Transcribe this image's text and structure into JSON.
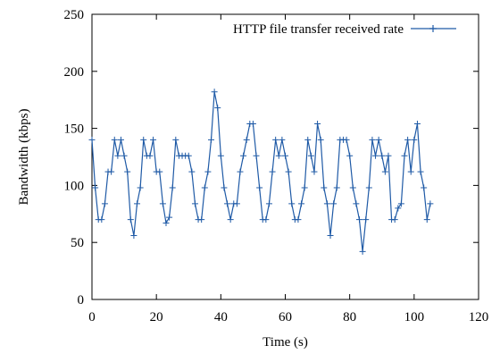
{
  "chart_data": {
    "type": "line",
    "xlabel": "Time (s)",
    "ylabel": "Bandwidth (kbps)",
    "xlim": [
      0,
      120
    ],
    "ylim": [
      0,
      250
    ],
    "xticks": [
      0,
      20,
      40,
      60,
      80,
      100,
      120
    ],
    "yticks": [
      0,
      50,
      100,
      150,
      200,
      250
    ],
    "grid": false,
    "legend_position": "top-right",
    "line_color": "#1f5aa6",
    "series": [
      {
        "name": "HTTP file transfer received rate",
        "x": [
          0,
          1,
          2,
          3,
          4,
          5,
          6,
          7,
          8,
          9,
          10,
          11,
          12,
          13,
          14,
          15,
          16,
          17,
          18,
          19,
          20,
          21,
          22,
          23,
          24,
          25,
          26,
          27,
          28,
          29,
          30,
          31,
          32,
          33,
          34,
          35,
          36,
          37,
          38,
          39,
          40,
          41,
          42,
          43,
          44,
          45,
          46,
          47,
          48,
          49,
          50,
          51,
          52,
          53,
          54,
          55,
          56,
          57,
          58,
          59,
          60,
          61,
          62,
          63,
          64,
          65,
          66,
          67,
          68,
          69,
          70,
          71,
          72,
          73,
          74,
          75,
          76,
          77,
          78,
          79,
          80,
          81,
          82,
          83,
          84,
          85,
          86,
          87,
          88,
          89,
          90,
          91,
          92,
          93,
          94,
          95,
          96,
          97,
          98,
          99,
          100,
          101,
          102,
          103,
          104,
          105
        ],
        "y": [
          140,
          98,
          70,
          70,
          84,
          112,
          112,
          140,
          126,
          140,
          126,
          112,
          70,
          56,
          84,
          98,
          140,
          126,
          126,
          140,
          112,
          112,
          84,
          67,
          72,
          98,
          140,
          126,
          126,
          126,
          126,
          112,
          84,
          70,
          70,
          98,
          112,
          140,
          182,
          168,
          126,
          98,
          84,
          70,
          84,
          84,
          112,
          126,
          140,
          154,
          154,
          126,
          98,
          70,
          70,
          84,
          112,
          140,
          126,
          140,
          126,
          112,
          84,
          70,
          70,
          84,
          98,
          140,
          126,
          112,
          154,
          140,
          98,
          84,
          56,
          84,
          98,
          140,
          140,
          140,
          126,
          98,
          84,
          70,
          42,
          70,
          98,
          140,
          126,
          140,
          126,
          112,
          126,
          70,
          70,
          80,
          84,
          126,
          140,
          112,
          140,
          154,
          112,
          98,
          70,
          84
        ]
      }
    ]
  }
}
